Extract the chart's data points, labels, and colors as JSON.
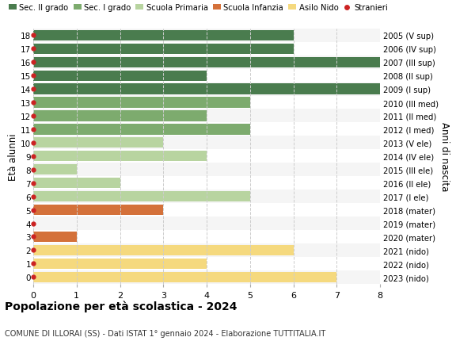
{
  "ages": [
    18,
    17,
    16,
    15,
    14,
    13,
    12,
    11,
    10,
    9,
    8,
    7,
    6,
    5,
    4,
    3,
    2,
    1,
    0
  ],
  "years": [
    "2005 (V sup)",
    "2006 (IV sup)",
    "2007 (III sup)",
    "2008 (II sup)",
    "2009 (I sup)",
    "2010 (III med)",
    "2011 (II med)",
    "2012 (I med)",
    "2013 (V ele)",
    "2014 (IV ele)",
    "2015 (III ele)",
    "2016 (II ele)",
    "2017 (I ele)",
    "2018 (mater)",
    "2019 (mater)",
    "2020 (mater)",
    "2021 (nido)",
    "2022 (nido)",
    "2023 (nido)"
  ],
  "values": [
    6,
    6,
    8,
    4,
    8,
    5,
    4,
    5,
    3,
    4,
    1,
    2,
    5,
    3,
    0,
    1,
    6,
    4,
    7
  ],
  "categories": [
    "Sec. II grado",
    "Sec. II grado",
    "Sec. II grado",
    "Sec. II grado",
    "Sec. II grado",
    "Sec. I grado",
    "Sec. I grado",
    "Sec. I grado",
    "Scuola Primaria",
    "Scuola Primaria",
    "Scuola Primaria",
    "Scuola Primaria",
    "Scuola Primaria",
    "Scuola Infanzia",
    "Scuola Infanzia",
    "Scuola Infanzia",
    "Asilo Nido",
    "Asilo Nido",
    "Asilo Nido"
  ],
  "colors": {
    "Sec. II grado": "#4a7c4e",
    "Sec. I grado": "#7dab6e",
    "Scuola Primaria": "#b8d4a0",
    "Scuola Infanzia": "#d4713a",
    "Asilo Nido": "#f5d97e"
  },
  "stranieri_color": "#cc2222",
  "xlim": [
    0,
    8
  ],
  "xticks": [
    0,
    1,
    2,
    3,
    4,
    5,
    6,
    7,
    8
  ],
  "title": "Popolazione per età scolastica - 2024",
  "subtitle": "COMUNE DI ILLORAI (SS) - Dati ISTAT 1° gennaio 2024 - Elaborazione TUTTITALIA.IT",
  "ylabel_left": "Età alunni",
  "ylabel_right": "Anni di nascita",
  "legend_items": [
    "Sec. II grado",
    "Sec. I grado",
    "Scuola Primaria",
    "Scuola Infanzia",
    "Asilo Nido",
    "Stranieri"
  ],
  "bg_color": "#ffffff",
  "bar_height": 0.78,
  "grid_color": "#cccccc",
  "row_alt_color": "#f5f5f5",
  "row_base_color": "#ffffff"
}
